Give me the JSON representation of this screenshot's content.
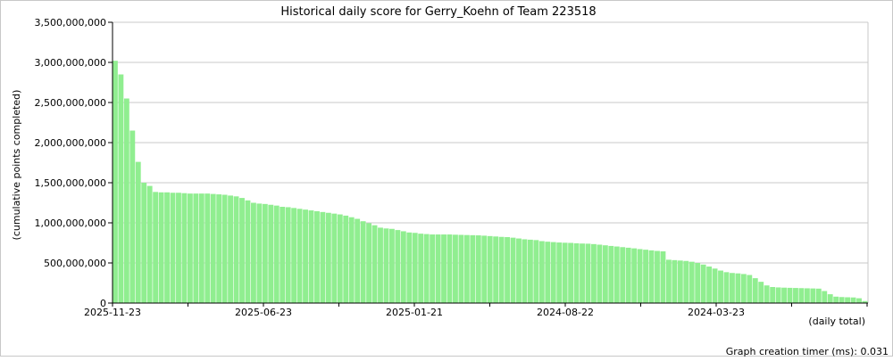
{
  "chart_data": {
    "type": "bar",
    "title": "Historical daily score for Gerry_Koehn of Team 223518",
    "ylabel": "(cumulative points completed)",
    "xlabel": "(daily total)",
    "ylim": [
      0,
      3500000000
    ],
    "y_ticks": [
      {
        "value": 0,
        "label": "0"
      },
      {
        "value": 500000000,
        "label": "500,000,000"
      },
      {
        "value": 1000000000,
        "label": "1,000,000,000"
      },
      {
        "value": 1500000000,
        "label": "1,500,000,000"
      },
      {
        "value": 2000000000,
        "label": "2,000,000,000"
      },
      {
        "value": 2500000000,
        "label": "2,500,000,000"
      },
      {
        "value": 3000000000,
        "label": "3,000,000,000"
      },
      {
        "value": 3500000000,
        "label": "3,500,000,000"
      }
    ],
    "x_tick_labels": [
      "2025-11-23",
      "2025-06-23",
      "2025-01-21",
      "2024-08-22",
      "2024-03-23"
    ],
    "bar_color": "#90ee90",
    "grid": true,
    "grid_color": "#c8c8c8",
    "values": [
      3020000000,
      2850000000,
      2550000000,
      2150000000,
      1760000000,
      1500000000,
      1460000000,
      1385000000,
      1380000000,
      1380000000,
      1375000000,
      1375000000,
      1370000000,
      1365000000,
      1365000000,
      1365000000,
      1365000000,
      1360000000,
      1355000000,
      1350000000,
      1340000000,
      1330000000,
      1310000000,
      1280000000,
      1250000000,
      1240000000,
      1235000000,
      1225000000,
      1215000000,
      1200000000,
      1195000000,
      1185000000,
      1175000000,
      1165000000,
      1155000000,
      1145000000,
      1135000000,
      1125000000,
      1115000000,
      1105000000,
      1090000000,
      1070000000,
      1050000000,
      1020000000,
      995000000,
      970000000,
      940000000,
      930000000,
      925000000,
      910000000,
      895000000,
      880000000,
      875000000,
      865000000,
      860000000,
      855000000,
      855000000,
      855000000,
      855000000,
      852000000,
      850000000,
      848000000,
      846000000,
      844000000,
      840000000,
      835000000,
      830000000,
      825000000,
      822000000,
      815000000,
      805000000,
      795000000,
      790000000,
      785000000,
      772000000,
      765000000,
      760000000,
      755000000,
      752000000,
      750000000,
      745000000,
      742000000,
      740000000,
      735000000,
      728000000,
      720000000,
      712000000,
      705000000,
      697000000,
      690000000,
      682000000,
      673000000,
      665000000,
      657000000,
      650000000,
      645000000,
      540000000,
      535000000,
      530000000,
      525000000,
      515000000,
      500000000,
      480000000,
      455000000,
      430000000,
      405000000,
      385000000,
      375000000,
      370000000,
      362000000,
      350000000,
      310000000,
      265000000,
      220000000,
      200000000,
      195000000,
      192000000,
      190000000,
      188000000,
      186000000,
      184000000,
      182000000,
      180000000,
      150000000,
      110000000,
      80000000,
      75000000,
      72000000,
      70000000,
      60000000,
      25000000
    ]
  },
  "footer": {
    "timer_text": "Graph creation timer (ms): 0.031"
  }
}
